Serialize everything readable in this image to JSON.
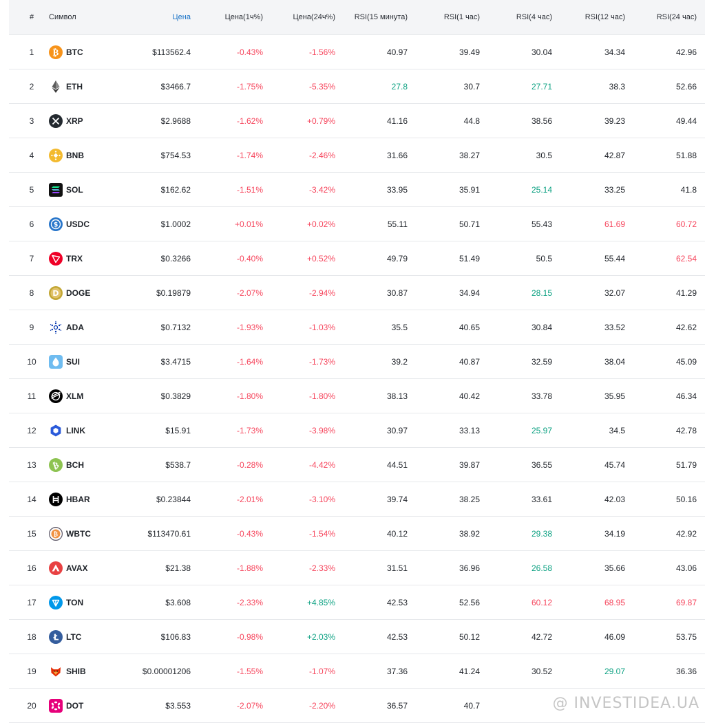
{
  "header": {
    "num": "#",
    "symbol": "Символ",
    "price": "Цена",
    "change_1h": "Цена(1ч%)",
    "change_24h": "Цена(24ч%)",
    "rsi_15m": "RSI(15 минута)",
    "rsi_1h": "RSI(1 час)",
    "rsi_4h": "RSI(4 час)",
    "rsi_12h": "RSI(12 час)",
    "rsi_24h": "RSI(24 час)"
  },
  "colors": {
    "red": "#f6465d",
    "green": "#0ea283",
    "accent": "#1a73c7"
  },
  "rows": [
    {
      "num": "1",
      "symbol": "BTC",
      "icon": "btc-icon",
      "price": "$113562.4",
      "ch1h": "-0.43%",
      "ch24h": "-1.56%",
      "r15": "40.97",
      "r1": "39.49",
      "r4": "30.04",
      "r12": "34.34",
      "r24": "42.96",
      "c": [
        "red",
        "red",
        "black",
        "black",
        "black",
        "black",
        "black"
      ]
    },
    {
      "num": "2",
      "symbol": "ETH",
      "icon": "eth-icon",
      "price": "$3466.7",
      "ch1h": "-1.75%",
      "ch24h": "-5.35%",
      "r15": "27.8",
      "r1": "30.7",
      "r4": "27.71",
      "r12": "38.3",
      "r24": "52.66",
      "c": [
        "red",
        "red",
        "green",
        "black",
        "green",
        "black",
        "black"
      ]
    },
    {
      "num": "3",
      "symbol": "XRP",
      "icon": "xrp-icon",
      "price": "$2.9688",
      "ch1h": "-1.62%",
      "ch24h": "+0.79%",
      "r15": "41.16",
      "r1": "44.8",
      "r4": "38.56",
      "r12": "39.23",
      "r24": "49.44",
      "c": [
        "red",
        "red",
        "black",
        "black",
        "black",
        "black",
        "black"
      ]
    },
    {
      "num": "4",
      "symbol": "BNB",
      "icon": "bnb-icon",
      "price": "$754.53",
      "ch1h": "-1.74%",
      "ch24h": "-2.46%",
      "r15": "31.66",
      "r1": "38.27",
      "r4": "30.5",
      "r12": "42.87",
      "r24": "51.88",
      "c": [
        "red",
        "red",
        "black",
        "black",
        "black",
        "black",
        "black"
      ]
    },
    {
      "num": "5",
      "symbol": "SOL",
      "icon": "sol-icon",
      "price": "$162.62",
      "ch1h": "-1.51%",
      "ch24h": "-3.42%",
      "r15": "33.95",
      "r1": "35.91",
      "r4": "25.14",
      "r12": "33.25",
      "r24": "41.8",
      "c": [
        "red",
        "red",
        "black",
        "black",
        "green",
        "black",
        "black"
      ]
    },
    {
      "num": "6",
      "symbol": "USDC",
      "icon": "usdc-icon",
      "price": "$1.0002",
      "ch1h": "+0.01%",
      "ch24h": "+0.02%",
      "r15": "55.11",
      "r1": "50.71",
      "r4": "55.43",
      "r12": "61.69",
      "r24": "60.72",
      "c": [
        "red",
        "red",
        "black",
        "black",
        "black",
        "red",
        "red"
      ]
    },
    {
      "num": "7",
      "symbol": "TRX",
      "icon": "trx-icon",
      "price": "$0.3266",
      "ch1h": "-0.40%",
      "ch24h": "+0.52%",
      "r15": "49.79",
      "r1": "51.49",
      "r4": "50.5",
      "r12": "55.44",
      "r24": "62.54",
      "c": [
        "red",
        "red",
        "black",
        "black",
        "black",
        "black",
        "red"
      ]
    },
    {
      "num": "8",
      "symbol": "DOGE",
      "icon": "doge-icon",
      "price": "$0.19879",
      "ch1h": "-2.07%",
      "ch24h": "-2.94%",
      "r15": "30.87",
      "r1": "34.94",
      "r4": "28.15",
      "r12": "32.07",
      "r24": "41.29",
      "c": [
        "red",
        "red",
        "black",
        "black",
        "green",
        "black",
        "black"
      ]
    },
    {
      "num": "9",
      "symbol": "ADA",
      "icon": "ada-icon",
      "price": "$0.7132",
      "ch1h": "-1.93%",
      "ch24h": "-1.03%",
      "r15": "35.5",
      "r1": "40.65",
      "r4": "30.84",
      "r12": "33.52",
      "r24": "42.62",
      "c": [
        "red",
        "red",
        "black",
        "black",
        "black",
        "black",
        "black"
      ]
    },
    {
      "num": "10",
      "symbol": "SUI",
      "icon": "sui-icon",
      "price": "$3.4715",
      "ch1h": "-1.64%",
      "ch24h": "-1.73%",
      "r15": "39.2",
      "r1": "40.87",
      "r4": "32.59",
      "r12": "38.04",
      "r24": "45.09",
      "c": [
        "red",
        "red",
        "black",
        "black",
        "black",
        "black",
        "black"
      ]
    },
    {
      "num": "11",
      "symbol": "XLM",
      "icon": "xlm-icon",
      "price": "$0.3829",
      "ch1h": "-1.80%",
      "ch24h": "-1.80%",
      "r15": "38.13",
      "r1": "40.42",
      "r4": "33.78",
      "r12": "35.95",
      "r24": "46.34",
      "c": [
        "red",
        "red",
        "black",
        "black",
        "black",
        "black",
        "black"
      ]
    },
    {
      "num": "12",
      "symbol": "LINK",
      "icon": "link-icon",
      "price": "$15.91",
      "ch1h": "-1.73%",
      "ch24h": "-3.98%",
      "r15": "30.97",
      "r1": "33.13",
      "r4": "25.97",
      "r12": "34.5",
      "r24": "42.78",
      "c": [
        "red",
        "red",
        "black",
        "black",
        "green",
        "black",
        "black"
      ]
    },
    {
      "num": "13",
      "symbol": "BCH",
      "icon": "bch-icon",
      "price": "$538.7",
      "ch1h": "-0.28%",
      "ch24h": "-4.42%",
      "r15": "44.51",
      "r1": "39.87",
      "r4": "36.55",
      "r12": "45.74",
      "r24": "51.79",
      "c": [
        "red",
        "red",
        "black",
        "black",
        "black",
        "black",
        "black"
      ]
    },
    {
      "num": "14",
      "symbol": "HBAR",
      "icon": "hbar-icon",
      "price": "$0.23844",
      "ch1h": "-2.01%",
      "ch24h": "-3.10%",
      "r15": "39.74",
      "r1": "38.25",
      "r4": "33.61",
      "r12": "42.03",
      "r24": "50.16",
      "c": [
        "red",
        "red",
        "black",
        "black",
        "black",
        "black",
        "black"
      ]
    },
    {
      "num": "15",
      "symbol": "WBTC",
      "icon": "wbtc-icon",
      "price": "$113470.61",
      "ch1h": "-0.43%",
      "ch24h": "-1.54%",
      "r15": "40.12",
      "r1": "38.92",
      "r4": "29.38",
      "r12": "34.19",
      "r24": "42.92",
      "c": [
        "red",
        "red",
        "black",
        "black",
        "green",
        "black",
        "black"
      ]
    },
    {
      "num": "16",
      "symbol": "AVAX",
      "icon": "avax-icon",
      "price": "$21.38",
      "ch1h": "-1.88%",
      "ch24h": "-2.33%",
      "r15": "31.51",
      "r1": "36.96",
      "r4": "26.58",
      "r12": "35.66",
      "r24": "43.06",
      "c": [
        "red",
        "red",
        "black",
        "black",
        "green",
        "black",
        "black"
      ]
    },
    {
      "num": "17",
      "symbol": "TON",
      "icon": "ton-icon",
      "price": "$3.608",
      "ch1h": "-2.33%",
      "ch24h": "+4.85%",
      "r15": "42.53",
      "r1": "52.56",
      "r4": "60.12",
      "r12": "68.95",
      "r24": "69.87",
      "c": [
        "red",
        "green",
        "black",
        "black",
        "red",
        "red",
        "red"
      ]
    },
    {
      "num": "18",
      "symbol": "LTC",
      "icon": "ltc-icon",
      "price": "$106.83",
      "ch1h": "-0.98%",
      "ch24h": "+2.03%",
      "r15": "42.53",
      "r1": "50.12",
      "r4": "42.72",
      "r12": "46.09",
      "r24": "53.75",
      "c": [
        "red",
        "green",
        "black",
        "black",
        "black",
        "black",
        "black"
      ]
    },
    {
      "num": "19",
      "symbol": "SHIB",
      "icon": "shib-icon",
      "price": "$0.00001206",
      "ch1h": "-1.55%",
      "ch24h": "-1.07%",
      "r15": "37.36",
      "r1": "41.24",
      "r4": "30.52",
      "r12": "29.07",
      "r24": "36.36",
      "c": [
        "red",
        "red",
        "black",
        "black",
        "black",
        "green",
        "black"
      ]
    },
    {
      "num": "20",
      "symbol": "DOT",
      "icon": "dot-icon",
      "price": "$3.553",
      "ch1h": "-2.07%",
      "ch24h": "-2.20%",
      "r15": "36.57",
      "r1": "40.7",
      "r4": "",
      "r12": "",
      "r24": "",
      "c": [
        "red",
        "red",
        "black",
        "black",
        "black",
        "black",
        "black"
      ]
    }
  ],
  "watermark": "@ INVESTIDEA.UA"
}
